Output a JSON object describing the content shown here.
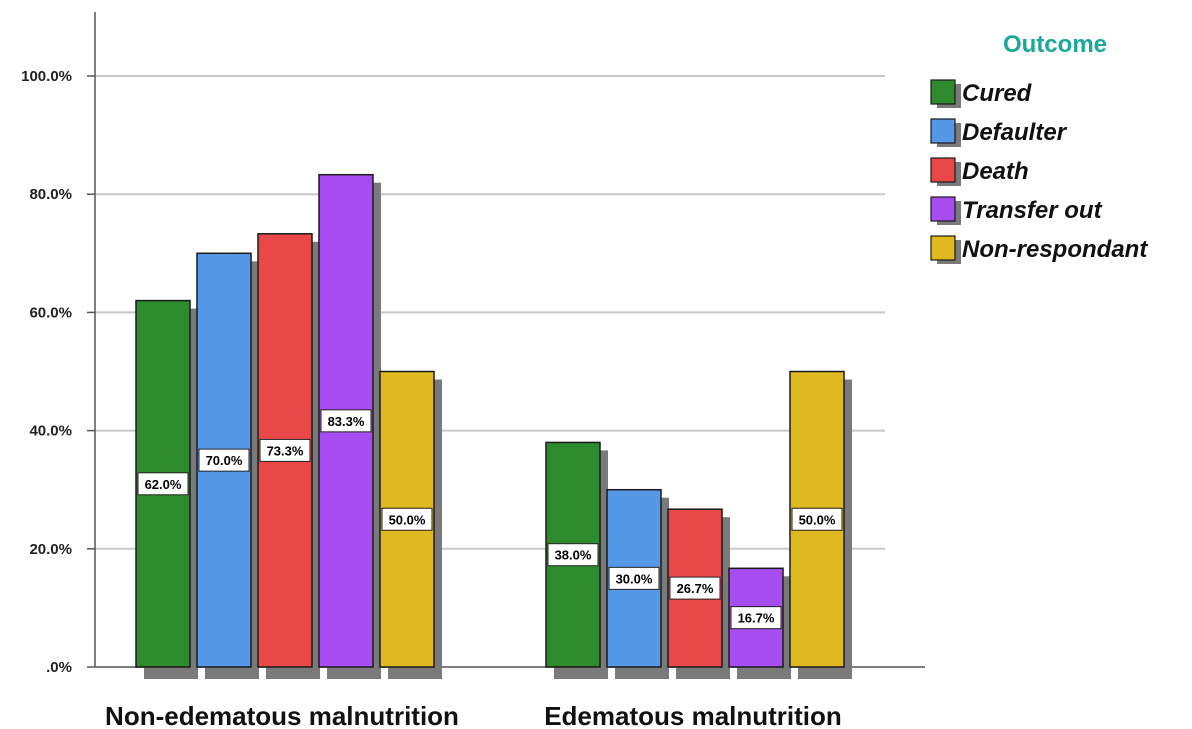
{
  "chart_data": {
    "type": "bar",
    "categories": [
      "Non-edematous malnutrition",
      "Edematous malnutrition"
    ],
    "series": [
      {
        "name": "Cured",
        "color": "#2d8a2d",
        "values": [
          62.0,
          38.0
        ],
        "labels": [
          "62.0%",
          "38.0%"
        ]
      },
      {
        "name": "Defaulter",
        "color": "#5599e6",
        "values": [
          70.0,
          30.0
        ],
        "labels": [
          "70.0%",
          "30.0%"
        ]
      },
      {
        "name": "Death",
        "color": "#e84848",
        "values": [
          73.3,
          26.7
        ],
        "labels": [
          "73.3%",
          "26.7%"
        ]
      },
      {
        "name": "Transfer out",
        "color": "#a64cf0",
        "values": [
          83.3,
          16.7
        ],
        "labels": [
          "83.3%",
          "16.7%"
        ]
      },
      {
        "name": "Non-respondant",
        "color": "#e0b81f",
        "values": [
          50.0,
          50.0
        ],
        "labels": [
          "50.0%",
          "50.0%"
        ]
      }
    ],
    "legend_title": "Outcome",
    "legend_position": "top-right",
    "yticks": [
      ".0%",
      "20.0%",
      "40.0%",
      "60.0%",
      "80.0%",
      "100.0%"
    ],
    "ylim": [
      0,
      110
    ],
    "grid": true,
    "xlabel": "",
    "ylabel": "",
    "title": ""
  }
}
